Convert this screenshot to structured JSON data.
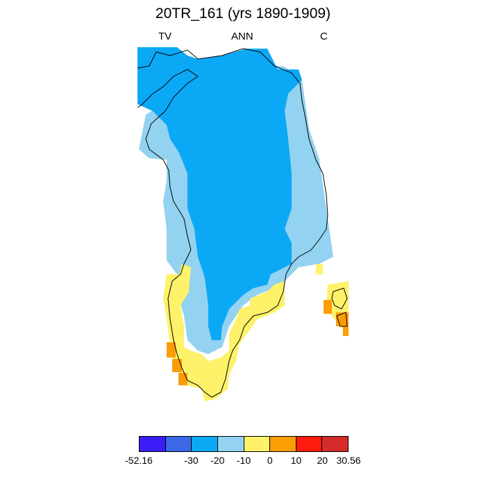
{
  "title": "20TR_161 (yrs 1890-1909)",
  "labels": {
    "left": "TV",
    "center": "ANN",
    "right": "C"
  },
  "colorbar": {
    "colors": [
      "#3b1ef7",
      "#3c68e6",
      "#0ba8f5",
      "#93d2f0",
      "#fdf26a",
      "#fd9d06",
      "#fd1c0d",
      "#d52b2b"
    ],
    "tick_labels": [
      "-52.16",
      "-30",
      "-20",
      "-10",
      "0",
      "10",
      "20",
      "30.56"
    ]
  },
  "chart_data": {
    "type": "heatmap",
    "title": "20TR_161 (yrs 1890-1909)",
    "variable": "TV",
    "season": "ANN",
    "units": "C",
    "levels": [
      -52.16,
      -30,
      -20,
      -10,
      0,
      10,
      20,
      30.56
    ],
    "region": "Greenland",
    "value_classes": {
      "interior_ice_sheet": "-30 to -20",
      "coastal_ice_margin": "-20 to -10",
      "southwest_and_south_coast": "-10 to 0",
      "scattered_southern_cells": "0 to 10"
    }
  }
}
